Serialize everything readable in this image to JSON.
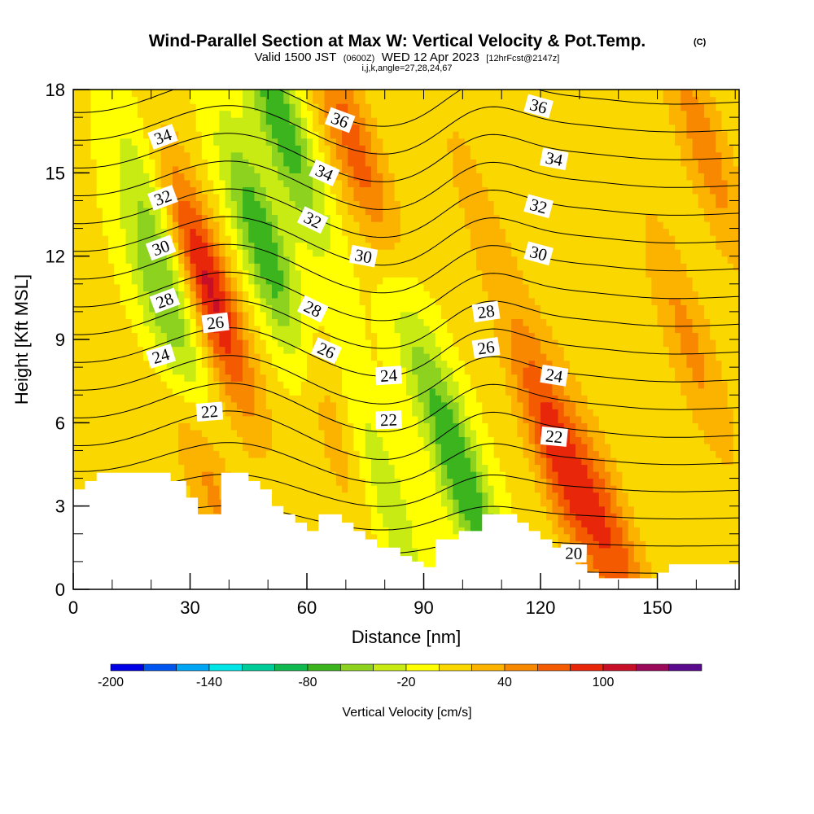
{
  "title": {
    "main": "Wind-Parallel Section at Max W: Vertical Velocity & Pot.Temp.",
    "tag": "(C)",
    "valid_prefix": "Valid 1500 JST",
    "valid_utc": "(0600Z)",
    "valid_date": "WED 12 Apr 2023",
    "forecast": "[12hrFcst@2147z]",
    "indices": "i,j,k,angle=27,28,24,67"
  },
  "chart_data": {
    "type": "heatmap",
    "xlabel": "Distance [nm]",
    "ylabel": "Height [Kft MSL]",
    "xlim": [
      0,
      171
    ],
    "ylim": [
      0,
      18
    ],
    "x_ticks": [
      0,
      30,
      60,
      90,
      120,
      150
    ],
    "y_ticks": [
      0,
      3,
      6,
      9,
      12,
      15,
      18
    ],
    "grid": false,
    "colorbar": {
      "title": "Vertical Velocity [cm/s]",
      "placement": "bottom",
      "tick_values": [
        -200,
        -140,
        -80,
        -20,
        40,
        100
      ],
      "bins": [
        -200,
        -180,
        -160,
        -140,
        -120,
        -100,
        -80,
        -60,
        -40,
        -20,
        0,
        20,
        40,
        60,
        80,
        100,
        120,
        140
      ],
      "colors": [
        "#0000e6",
        "#0055f0",
        "#00a6f5",
        "#00e6e6",
        "#00cc99",
        "#10b850",
        "#3cb41e",
        "#8cd21e",
        "#c8eb14",
        "#ffff00",
        "#fbd700",
        "#fbb300",
        "#f88800",
        "#f45a00",
        "#e8260a",
        "#c80f28",
        "#9b0a5a",
        "#5a0a8c"
      ]
    },
    "velocity_field": {
      "background_cm_s": 5,
      "features": [
        {
          "x": 25,
          "z": 9,
          "value": -70
        },
        {
          "x": 23,
          "z": 13,
          "value": -50
        },
        {
          "x": 34,
          "z": 11,
          "value": 110
        },
        {
          "x": 33,
          "z": 5,
          "value": 60
        },
        {
          "x": 50,
          "z": 12,
          "value": -90
        },
        {
          "x": 53,
          "z": 17,
          "value": -80
        },
        {
          "x": 73,
          "z": 15.5,
          "value": 70
        },
        {
          "x": 64,
          "z": 7,
          "value": 40
        },
        {
          "x": 85,
          "z": 10,
          "value": -30
        },
        {
          "x": 100,
          "z": 4,
          "value": -80
        },
        {
          "x": 80,
          "z": 3.5,
          "value": -40
        },
        {
          "x": 124,
          "z": 5,
          "value": 80
        },
        {
          "x": 138,
          "z": 2,
          "value": 60
        },
        {
          "x": 158,
          "z": 9,
          "value": 40
        },
        {
          "x": 162,
          "z": 16,
          "value": 45
        },
        {
          "x": 103,
          "z": 14,
          "value": 20
        },
        {
          "x": 118,
          "z": 13,
          "value": 10
        }
      ]
    },
    "terrain": {
      "x": [
        0,
        3,
        6,
        22,
        25,
        29,
        32,
        38,
        41,
        45,
        48,
        51,
        54,
        57,
        60,
        63,
        69,
        72,
        75,
        78,
        84,
        87,
        90,
        93,
        99,
        105,
        111,
        114,
        117,
        120,
        123,
        126,
        129,
        132,
        135,
        138,
        141,
        144,
        147,
        150,
        153,
        171
      ],
      "height_kft": [
        3.6,
        3.9,
        4.2,
        4.2,
        3.9,
        3.3,
        2.7,
        4.2,
        4.2,
        3.9,
        3.6,
        3.0,
        2.7,
        2.4,
        2.1,
        2.7,
        2.4,
        2.1,
        1.8,
        1.5,
        1.2,
        1.0,
        0.8,
        1.8,
        2.1,
        2.7,
        2.7,
        2.4,
        2.1,
        1.8,
        1.5,
        1.2,
        0.9,
        0.6,
        0.4,
        0.4,
        0.4,
        0.4,
        0.4,
        0.6,
        0.9,
        0.9
      ]
    },
    "theta_contours": {
      "levels": [
        20,
        21,
        22,
        23,
        24,
        25,
        26,
        27,
        28,
        29,
        30,
        31,
        32,
        33,
        34,
        35,
        36,
        37
      ],
      "labels": [
        {
          "text": "34",
          "x": 23,
          "z": 16.3
        },
        {
          "text": "32",
          "x": 23,
          "z": 14.1
        },
        {
          "text": "30",
          "x": 22.5,
          "z": 12.3
        },
        {
          "text": "28",
          "x": 23.5,
          "z": 10.4
        },
        {
          "text": "24",
          "x": 22.5,
          "z": 8.4
        },
        {
          "text": "26",
          "x": 36.5,
          "z": 9.6
        },
        {
          "text": "22",
          "x": 35,
          "z": 6.4
        },
        {
          "text": "36",
          "x": 68.5,
          "z": 16.9
        },
        {
          "text": "34",
          "x": 64.5,
          "z": 15.0
        },
        {
          "text": "32",
          "x": 61.5,
          "z": 13.3
        },
        {
          "text": "30",
          "x": 74.5,
          "z": 12.0
        },
        {
          "text": "28",
          "x": 61.5,
          "z": 10.1
        },
        {
          "text": "26",
          "x": 65,
          "z": 8.6
        },
        {
          "text": "24",
          "x": 81,
          "z": 7.7
        },
        {
          "text": "22",
          "x": 81,
          "z": 6.1
        },
        {
          "text": "36",
          "x": 119.5,
          "z": 17.4
        },
        {
          "text": "34",
          "x": 123.5,
          "z": 15.5
        },
        {
          "text": "32",
          "x": 119.5,
          "z": 13.8
        },
        {
          "text": "30",
          "x": 119.5,
          "z": 12.1
        },
        {
          "text": "28",
          "x": 106,
          "z": 10.0
        },
        {
          "text": "26",
          "x": 106,
          "z": 8.7
        },
        {
          "text": "24",
          "x": 123.5,
          "z": 7.7
        },
        {
          "text": "22",
          "x": 123.5,
          "z": 5.5
        },
        {
          "text": "20",
          "x": 128.5,
          "z": 1.3
        }
      ]
    }
  }
}
